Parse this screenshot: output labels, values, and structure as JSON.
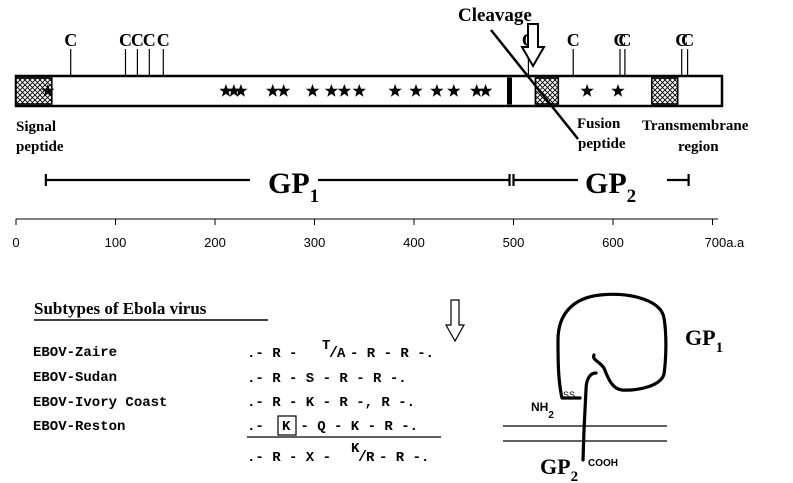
{
  "cleavage_label": "Cleavage",
  "cysteine_label": "C",
  "cysteine_positions": [
    55,
    110,
    122,
    134,
    148,
    515,
    560,
    607,
    612,
    669,
    675
  ],
  "star_positions": [
    32,
    211,
    219,
    226,
    258,
    269,
    298,
    317,
    330,
    345,
    381,
    402,
    423,
    440,
    463,
    472,
    574,
    605
  ],
  "domains": [
    {
      "name": "signal-peptide",
      "start": 0,
      "end": 36
    },
    {
      "name": "cleavage-site",
      "start": 494,
      "end": 498
    },
    {
      "name": "fusion-peptide",
      "start": 522,
      "end": 545
    },
    {
      "name": "transmembrane-region",
      "start": 639,
      "end": 665
    }
  ],
  "labels": {
    "signal": "Signal",
    "peptide": "peptide",
    "fusion": "Fusion",
    "fusion_peptide": "peptide",
    "transmembrane": "Transmembrane",
    "region": "region"
  },
  "gp1": {
    "main": "GP",
    "sub": "1",
    "start": 30,
    "end": 496
  },
  "gp2": {
    "main": "GP",
    "sub": "2",
    "start": 500,
    "end": 676
  },
  "axis": {
    "ticks": [
      0,
      100,
      200,
      300,
      400,
      500,
      600,
      700
    ],
    "tick_labels": [
      "0",
      "100",
      "200",
      "300",
      "400",
      "500",
      "600",
      "700a.a"
    ]
  },
  "subtypes": {
    "heading": "Subtypes of Ebola virus",
    "rows": [
      {
        "name": "EBOV-Zaire",
        "prefix": ".- R -",
        "var_top": "T",
        "var_slash": "/",
        "var_bottom": "A",
        "suffix": "- R - R -."
      },
      {
        "name": "EBOV-Sudan",
        "text": ".- R - S - R - R -."
      },
      {
        "name": "EBOV-Ivory Coast",
        "text": ".- R - K - R -, R -."
      },
      {
        "name": "EBOV-Reston",
        "boxed": "K",
        "prefix": ".- ",
        "suffix": " - Q - K - R -."
      }
    ],
    "consensus": {
      "prefix": ".- R - X -",
      "var_top": "K",
      "var_slash": "/",
      "var_bottom": "R",
      "suffix": "- R -."
    }
  },
  "schematic": {
    "gp1_main": "GP",
    "gp1_sub": "1",
    "gp2_main": "GP",
    "gp2_sub": "2",
    "nh2_main": "NH",
    "nh2_sub": "2",
    "ss": "SS",
    "cooh": "COOH"
  }
}
